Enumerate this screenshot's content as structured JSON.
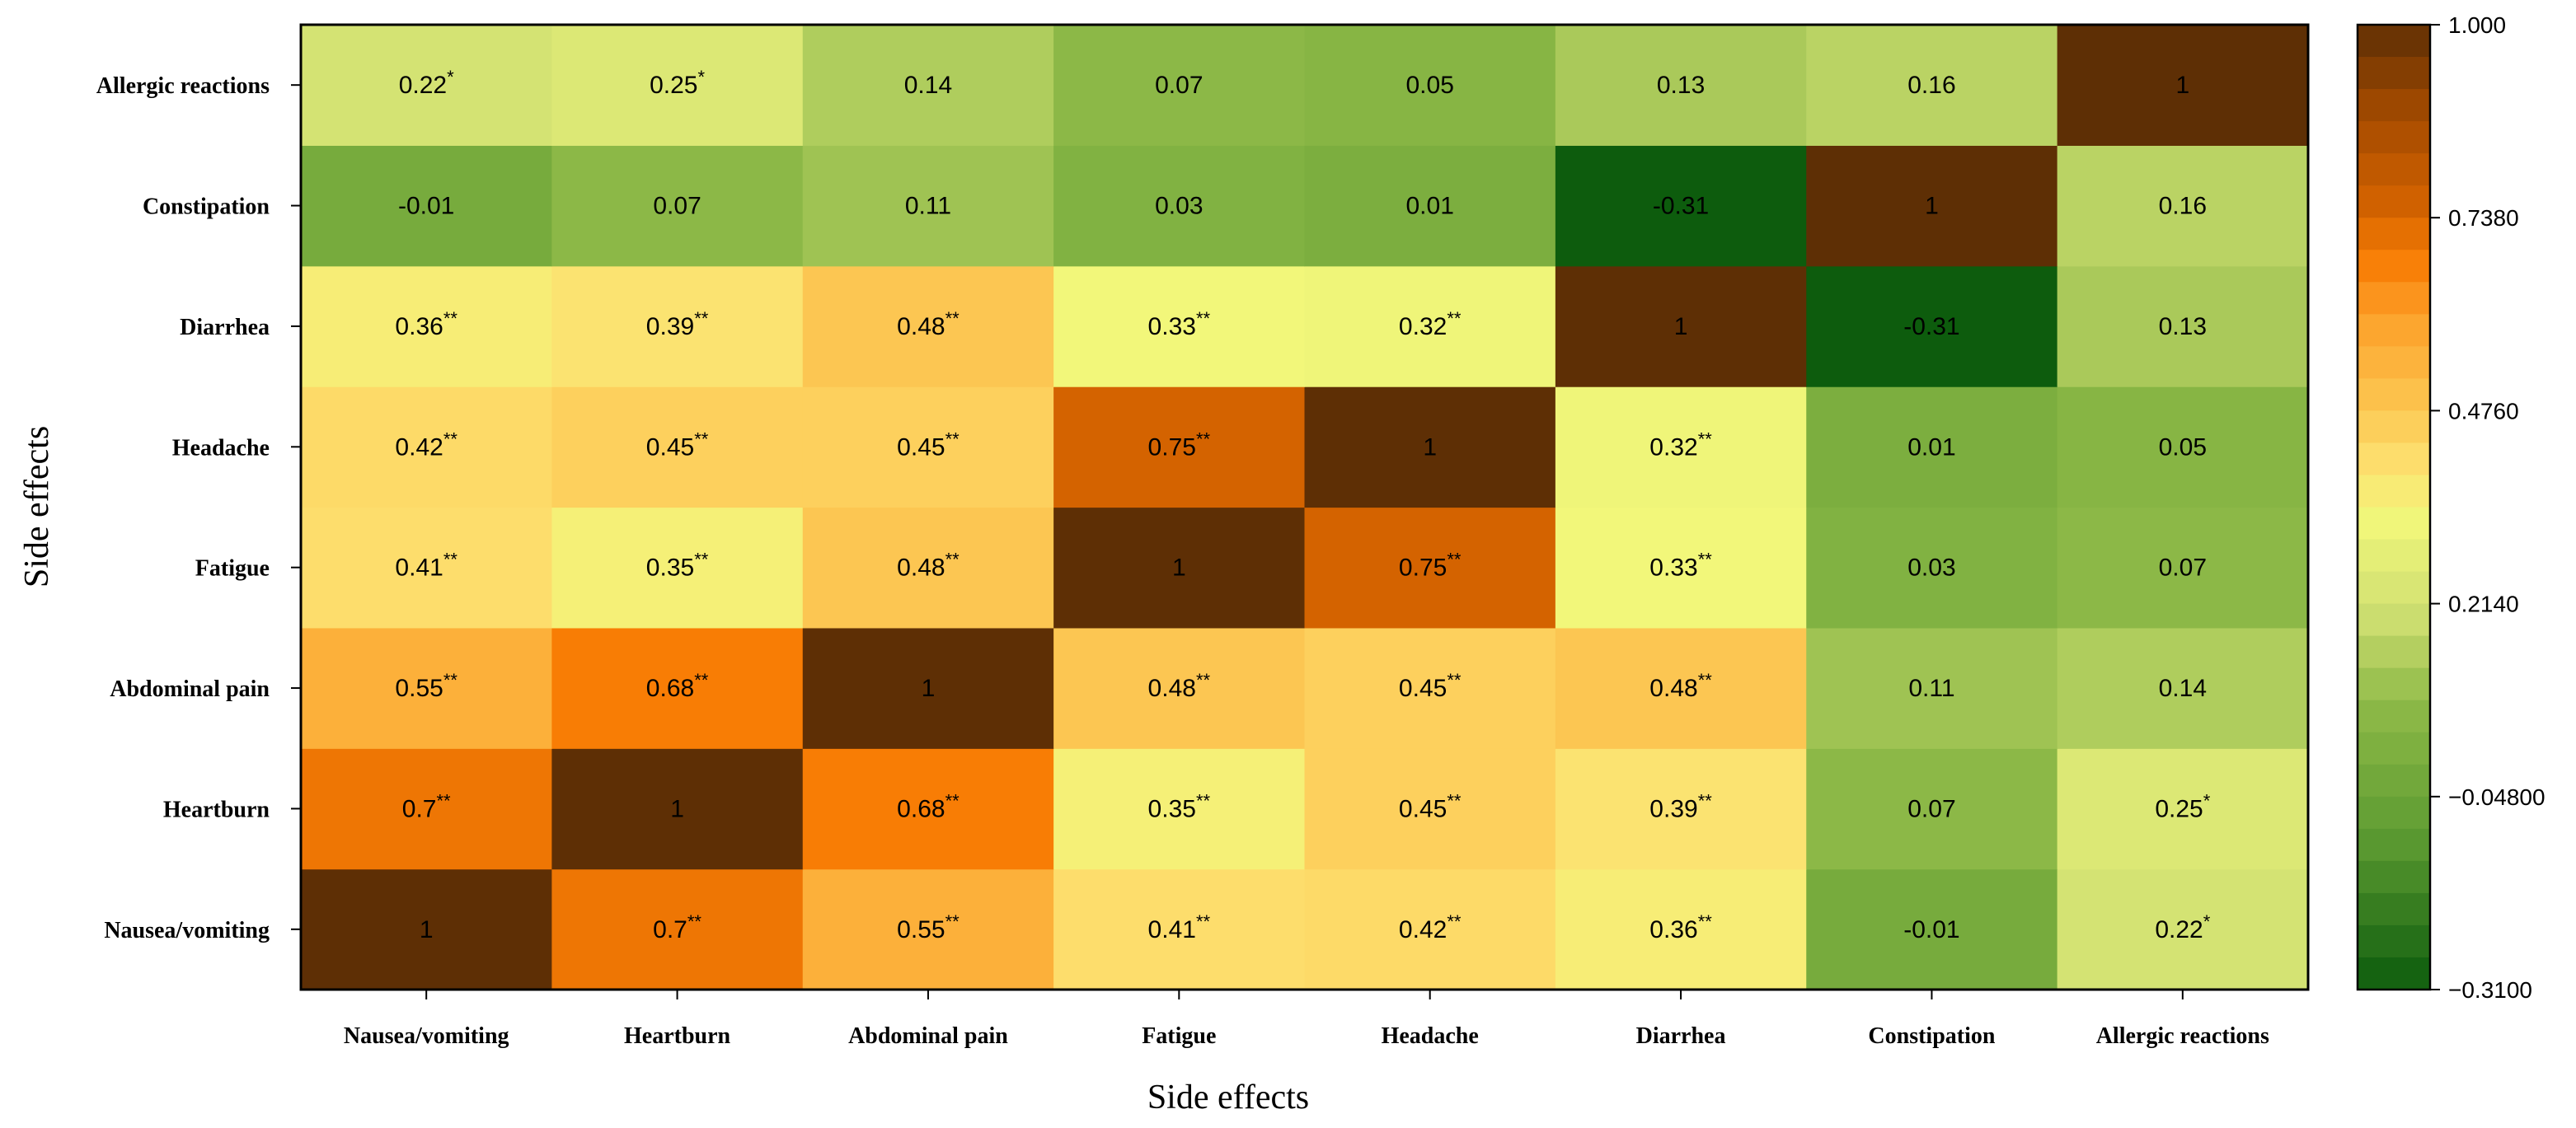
{
  "chart_data": {
    "type": "heatmap",
    "title": "",
    "xlabel": "Side effects",
    "ylabel": "Side effects",
    "labels": [
      "Nausea/vomiting",
      "Heartburn",
      "Abdominal pain",
      "Fatigue",
      "Headache",
      "Diarrhea",
      "Constipation",
      "Allergic reactions"
    ],
    "matrix": [
      [
        1,
        0.7,
        0.55,
        0.41,
        0.42,
        0.36,
        -0.01,
        0.22
      ],
      [
        0.7,
        1,
        0.68,
        0.35,
        0.45,
        0.39,
        0.07,
        0.25
      ],
      [
        0.55,
        0.68,
        1,
        0.48,
        0.45,
        0.48,
        0.11,
        0.14
      ],
      [
        0.41,
        0.35,
        0.48,
        1,
        0.75,
        0.33,
        0.03,
        0.07
      ],
      [
        0.42,
        0.45,
        0.45,
        0.75,
        1,
        0.32,
        0.01,
        0.05
      ],
      [
        0.36,
        0.39,
        0.48,
        0.33,
        0.32,
        1,
        -0.31,
        0.13
      ],
      [
        -0.01,
        0.07,
        0.11,
        0.03,
        0.01,
        -0.31,
        1,
        0.16
      ],
      [
        0.22,
        0.25,
        0.14,
        0.07,
        0.05,
        0.13,
        0.16,
        1
      ]
    ],
    "value_text": [
      [
        "1",
        "0.7",
        "0.55",
        "0.41",
        "0.42",
        "0.36",
        "-0.01",
        "0.22"
      ],
      [
        "0.7",
        "1",
        "0.68",
        "0.35",
        "0.45",
        "0.39",
        "0.07",
        "0.25"
      ],
      [
        "0.55",
        "0.68",
        "1",
        "0.48",
        "0.45",
        "0.48",
        "0.11",
        "0.14"
      ],
      [
        "0.41",
        "0.35",
        "0.48",
        "1",
        "0.75",
        "0.33",
        "0.03",
        "0.07"
      ],
      [
        "0.42",
        "0.45",
        "0.45",
        "0.75",
        "1",
        "0.32",
        "0.01",
        "0.05"
      ],
      [
        "0.36",
        "0.39",
        "0.48",
        "0.33",
        "0.32",
        "1",
        "-0.31",
        "0.13"
      ],
      [
        "-0.01",
        "0.07",
        "0.11",
        "0.03",
        "0.01",
        "-0.31",
        "1",
        "0.16"
      ],
      [
        "0.22",
        "0.25",
        "0.14",
        "0.07",
        "0.05",
        "0.13",
        "0.16",
        "1"
      ]
    ],
    "significance": [
      [
        "",
        "**",
        "**",
        "**",
        "**",
        "**",
        "",
        "*"
      ],
      [
        "**",
        "",
        "**",
        "**",
        "**",
        "**",
        "",
        "*"
      ],
      [
        "**",
        "**",
        "",
        "**",
        "**",
        "**",
        "",
        ""
      ],
      [
        "**",
        "**",
        "**",
        "",
        "**",
        "**",
        "",
        ""
      ],
      [
        "**",
        "**",
        "**",
        "**",
        "",
        "**",
        "",
        ""
      ],
      [
        "**",
        "**",
        "**",
        "**",
        "**",
        "",
        "",
        ""
      ],
      [
        "",
        "",
        "",
        "",
        "",
        "",
        "",
        ""
      ],
      [
        "*",
        "*",
        "",
        "",
        "",
        "",
        "",
        ""
      ]
    ],
    "colorbar": {
      "min": -0.31,
      "max": 1.0,
      "ticks": [
        1.0,
        0.738,
        0.476,
        0.214,
        -0.048,
        -0.31
      ],
      "tick_labels": [
        "1.000",
        "0.7380",
        "0.4760",
        "0.2140",
        "−0.04800",
        "−0.3100"
      ],
      "colors": [
        {
          "stop": -0.31,
          "color": "#0d5c0d"
        },
        {
          "stop": -0.1,
          "color": "#5e9c32"
        },
        {
          "stop": 0.08,
          "color": "#8fba48"
        },
        {
          "stop": 0.2,
          "color": "#cfdf72"
        },
        {
          "stop": 0.33,
          "color": "#f2f77a"
        },
        {
          "stop": 0.4,
          "color": "#fde070"
        },
        {
          "stop": 0.5,
          "color": "#fcc04a"
        },
        {
          "stop": 0.6,
          "color": "#fca12a"
        },
        {
          "stop": 0.68,
          "color": "#f87d05"
        },
        {
          "stop": 0.75,
          "color": "#d46300"
        },
        {
          "stop": 0.88,
          "color": "#a34a00"
        },
        {
          "stop": 1.0,
          "color": "#5e2f05"
        }
      ]
    }
  }
}
